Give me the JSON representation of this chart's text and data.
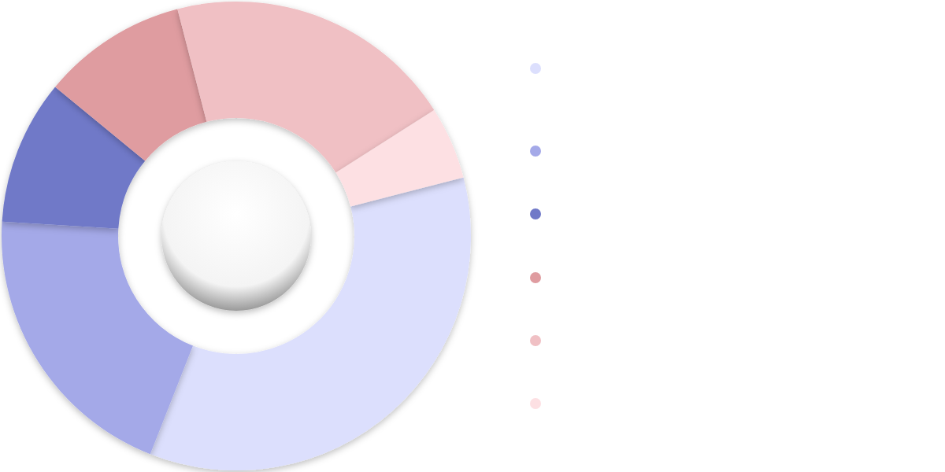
{
  "chart_data": {
    "type": "donut",
    "categories": [
      null,
      null,
      null,
      null,
      null,
      null
    ],
    "values": [
      35,
      20,
      10,
      10,
      20,
      5
    ],
    "colors": [
      "#dcdffd",
      "#a4a9e8",
      "#7079c8",
      "#df9ca0",
      "#f0c0c4",
      "#fde0e3"
    ]
  }
}
